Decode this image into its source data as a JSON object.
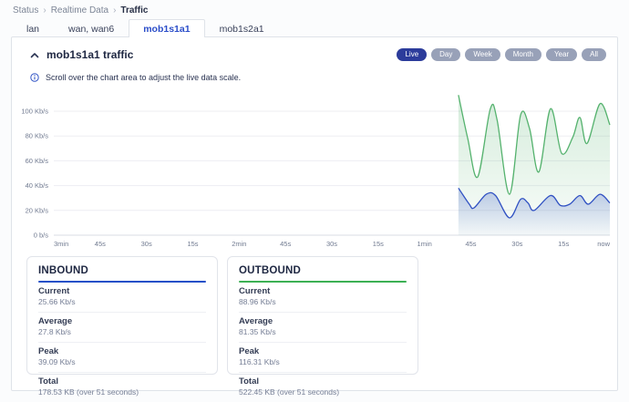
{
  "breadcrumb": {
    "items": [
      "Status",
      "Realtime Data",
      "Traffic"
    ],
    "separator": "›"
  },
  "tabs": [
    {
      "label": "lan",
      "active": false
    },
    {
      "label": "wan, wan6",
      "active": false
    },
    {
      "label": "mob1s1a1",
      "active": true
    },
    {
      "label": "mob1s2a1",
      "active": false
    }
  ],
  "section": {
    "title": "mob1s1a1 traffic",
    "info": "Scroll over the chart area to adjust the live data scale."
  },
  "range_buttons": [
    {
      "label": "Live",
      "active": true
    },
    {
      "label": "Day",
      "active": false
    },
    {
      "label": "Week",
      "active": false
    },
    {
      "label": "Month",
      "active": false
    },
    {
      "label": "Year",
      "active": false
    },
    {
      "label": "All",
      "active": false
    }
  ],
  "chart_data": {
    "type": "area",
    "title": "mob1s1a1 traffic (live)",
    "x_span_seconds": 180,
    "x_ticks": [
      "3min",
      "45s",
      "30s",
      "15s",
      "2min",
      "45s",
      "30s",
      "15s",
      "1min",
      "45s",
      "30s",
      "15s",
      "now"
    ],
    "y_ticks": [
      "100 Kb/s",
      "80 Kb/s",
      "60 Kb/s",
      "40 Kb/s",
      "20 Kb/s",
      "0 b/s"
    ],
    "y_tick_values": [
      100,
      80,
      60,
      40,
      20,
      0
    ],
    "ylim": [
      0,
      119
    ],
    "grid": true,
    "legend_position": "none",
    "series": [
      {
        "name": "outbound",
        "unit": "Kb/s",
        "color": "#55b26e",
        "fill_from": "rgba(101,186,124,0.28)",
        "fill_to": "rgba(101,186,124,0.04)",
        "points_seconds_ago_vs_kbps": [
          [
            49,
            113
          ],
          [
            46,
            78
          ],
          [
            42.8,
            47
          ],
          [
            38.7,
            102
          ],
          [
            36.5,
            93
          ],
          [
            32.5,
            33
          ],
          [
            28.9,
            97
          ],
          [
            26,
            86
          ],
          [
            23,
            51
          ],
          [
            19.2,
            102
          ],
          [
            15.6,
            66
          ],
          [
            12,
            79
          ],
          [
            9.7,
            95
          ],
          [
            7.4,
            74
          ],
          [
            3.2,
            106
          ],
          [
            0,
            89
          ]
        ]
      },
      {
        "name": "inbound",
        "unit": "Kb/s",
        "color": "#3152c3",
        "fill_from": "rgba(73,104,201,0.35)",
        "fill_to": "rgba(73,104,201,0.03)",
        "points_seconds_ago_vs_kbps": [
          [
            49,
            38
          ],
          [
            45.5,
            25
          ],
          [
            44,
            22
          ],
          [
            40,
            33
          ],
          [
            37,
            32
          ],
          [
            32.5,
            14
          ],
          [
            28.9,
            29
          ],
          [
            26.5,
            26
          ],
          [
            24.5,
            20
          ],
          [
            19.2,
            32
          ],
          [
            16,
            24
          ],
          [
            13,
            25
          ],
          [
            9.7,
            32
          ],
          [
            7,
            25
          ],
          [
            3.2,
            33
          ],
          [
            0,
            26
          ]
        ]
      }
    ]
  },
  "panels": [
    {
      "title": "INBOUND",
      "accent": "#2450c8",
      "rows": [
        {
          "label": "Current",
          "value": "25.66 Kb/s"
        },
        {
          "label": "Average",
          "value": "27.8 Kb/s"
        },
        {
          "label": "Peak",
          "value": "39.09 Kb/s"
        },
        {
          "label": "Total",
          "value": "178.53 KB (over 51 seconds)"
        }
      ]
    },
    {
      "title": "OUTBOUND",
      "accent": "#3cb054",
      "rows": [
        {
          "label": "Current",
          "value": "88.96 Kb/s"
        },
        {
          "label": "Average",
          "value": "81.35 Kb/s"
        },
        {
          "label": "Peak",
          "value": "116.31 Kb/s"
        },
        {
          "label": "Total",
          "value": "522.45 KB (over 51 seconds)"
        }
      ]
    }
  ]
}
